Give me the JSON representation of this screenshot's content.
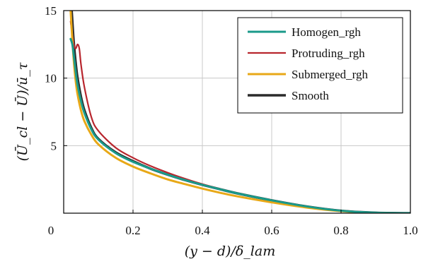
{
  "chart_data": {
    "type": "line",
    "xlabel": "(y − d)/δ_lam",
    "ylabel": "(Ū_cl − Ū)/ū_τ",
    "xlim": [
      0,
      1.0
    ],
    "ylim": [
      0,
      15
    ],
    "x_ticks": [
      "0",
      "0.2",
      "0.4",
      "0.6",
      "0.8",
      "1.0"
    ],
    "y_ticks": [
      "5",
      "10",
      "15"
    ],
    "x_tick_values": [
      0,
      0.2,
      0.4,
      0.6,
      0.8,
      1.0
    ],
    "y_tick_values": [
      5,
      10,
      15
    ],
    "grid": true,
    "legend_position": "top-right",
    "series": [
      {
        "name": "Homogen_rgh",
        "color": "#1a9a8a",
        "x": [
          0.02,
          0.025,
          0.03,
          0.035,
          0.04,
          0.05,
          0.06,
          0.08,
          0.1,
          0.15,
          0.2,
          0.25,
          0.3,
          0.35,
          0.4,
          0.45,
          0.5,
          0.6,
          0.7,
          0.8,
          0.9,
          1.0
        ],
        "y": [
          12.9,
          12.5,
          11.5,
          10.4,
          9.5,
          8.3,
          7.4,
          6.2,
          5.45,
          4.45,
          3.8,
          3.3,
          2.85,
          2.45,
          2.1,
          1.78,
          1.47,
          0.95,
          0.5,
          0.18,
          0.03,
          0.0
        ]
      },
      {
        "name": "Protruding_rgh",
        "color": "#b8262e",
        "x": [
          0.02,
          0.025,
          0.03,
          0.035,
          0.04,
          0.045,
          0.05,
          0.06,
          0.08,
          0.1,
          0.15,
          0.2,
          0.25,
          0.3,
          0.35,
          0.4,
          0.45,
          0.5,
          0.6,
          0.7,
          0.8,
          0.9,
          1.0
        ],
        "y": [
          14.2,
          13.2,
          12.4,
          12.2,
          12.5,
          12.2,
          11.0,
          9.3,
          7.1,
          6.1,
          4.85,
          4.1,
          3.5,
          3.0,
          2.55,
          2.15,
          1.8,
          1.48,
          0.95,
          0.5,
          0.18,
          0.03,
          0.0
        ]
      },
      {
        "name": "Submerged_rgh",
        "color": "#e8a817",
        "x": [
          0.02,
          0.025,
          0.03,
          0.035,
          0.04,
          0.05,
          0.06,
          0.08,
          0.1,
          0.15,
          0.2,
          0.25,
          0.3,
          0.35,
          0.4,
          0.45,
          0.5,
          0.6,
          0.7,
          0.8,
          0.9,
          1.0
        ],
        "y": [
          15.0,
          12.8,
          11.0,
          9.7,
          8.8,
          7.6,
          6.8,
          5.8,
          5.1,
          4.1,
          3.45,
          2.95,
          2.5,
          2.15,
          1.82,
          1.52,
          1.25,
          0.8,
          0.42,
          0.15,
          0.02,
          0.0
        ]
      },
      {
        "name": "Smooth",
        "color": "#2b2b2b",
        "x": [
          0.023,
          0.025,
          0.028,
          0.032,
          0.036,
          0.04,
          0.05,
          0.06,
          0.08,
          0.1,
          0.15,
          0.2,
          0.25,
          0.3,
          0.35,
          0.4,
          0.45,
          0.5,
          0.6,
          0.7,
          0.8,
          0.9,
          1.0
        ],
        "y": [
          15.0,
          14.2,
          13.0,
          11.8,
          10.8,
          10.0,
          8.6,
          7.6,
          6.3,
          5.5,
          4.5,
          3.85,
          3.3,
          2.85,
          2.45,
          2.1,
          1.78,
          1.47,
          0.95,
          0.5,
          0.18,
          0.03,
          0.0
        ]
      }
    ]
  }
}
